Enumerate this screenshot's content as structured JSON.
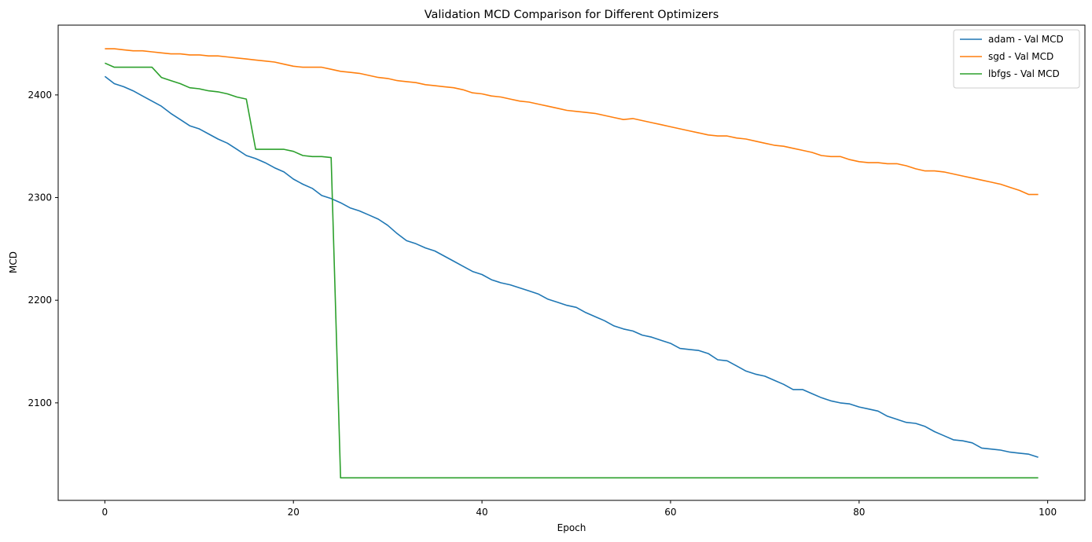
{
  "chart_data": {
    "type": "line",
    "title": "Validation MCD Comparison for Different Optimizers",
    "xlabel": "Epoch",
    "ylabel": "MCD",
    "xlim": [
      -4.95,
      103.95
    ],
    "ylim": [
      2005,
      2468
    ],
    "xticks": [
      0,
      20,
      40,
      60,
      80,
      100
    ],
    "yticks": [
      2100,
      2200,
      2300,
      2400
    ],
    "grid": false,
    "legend_position": "top-right",
    "series": [
      {
        "name": "adam - Val MCD",
        "color": "#1f77b4",
        "x_start": 0,
        "values": [
          2418,
          2411,
          2408,
          2404,
          2399,
          2394,
          2389,
          2382,
          2376,
          2370,
          2367,
          2362,
          2357,
          2353,
          2347,
          2341,
          2338,
          2334,
          2329,
          2325,
          2318,
          2313,
          2309,
          2302,
          2299,
          2295,
          2290,
          2287,
          2283,
          2279,
          2273,
          2265,
          2258,
          2255,
          2251,
          2248,
          2243,
          2238,
          2233,
          2228,
          2225,
          2220,
          2217,
          2215,
          2212,
          2209,
          2206,
          2201,
          2198,
          2195,
          2193,
          2188,
          2184,
          2180,
          2175,
          2172,
          2170,
          2166,
          2164,
          2161,
          2158,
          2153,
          2152,
          2151,
          2148,
          2142,
          2141,
          2136,
          2131,
          2128,
          2126,
          2122,
          2118,
          2113,
          2113,
          2109,
          2105,
          2102,
          2100,
          2099,
          2096,
          2094,
          2092,
          2087,
          2084,
          2081,
          2080,
          2077,
          2072,
          2068,
          2064,
          2063,
          2061,
          2056,
          2055,
          2054,
          2052,
          2051,
          2050,
          2047
        ]
      },
      {
        "name": "sgd - Val MCD",
        "color": "#ff7f0e",
        "x_start": 0,
        "values": [
          2445,
          2445,
          2444,
          2443,
          2443,
          2442,
          2441,
          2440,
          2440,
          2439,
          2439,
          2438,
          2438,
          2437,
          2436,
          2435,
          2434,
          2433,
          2432,
          2430,
          2428,
          2427,
          2427,
          2427,
          2425,
          2423,
          2422,
          2421,
          2419,
          2417,
          2416,
          2414,
          2413,
          2412,
          2410,
          2409,
          2408,
          2407,
          2405,
          2402,
          2401,
          2399,
          2398,
          2396,
          2394,
          2393,
          2391,
          2389,
          2387,
          2385,
          2384,
          2383,
          2382,
          2380,
          2378,
          2376,
          2377,
          2375,
          2373,
          2371,
          2369,
          2367,
          2365,
          2363,
          2361,
          2360,
          2360,
          2358,
          2357,
          2355,
          2353,
          2351,
          2350,
          2348,
          2346,
          2344,
          2341,
          2340,
          2340,
          2337,
          2335,
          2334,
          2334,
          2333,
          2333,
          2331,
          2328,
          2326,
          2326,
          2325,
          2323,
          2321,
          2319,
          2317,
          2315,
          2313,
          2310,
          2307,
          2303,
          2303
        ]
      },
      {
        "name": "lbfgs - Val MCD",
        "color": "#2ca02c",
        "x_start": 0,
        "values": [
          2431,
          2427,
          2427,
          2427,
          2427,
          2427,
          2417,
          2414,
          2411,
          2407,
          2406,
          2404,
          2403,
          2401,
          2398,
          2396,
          2347,
          2347,
          2347,
          2347,
          2345,
          2341,
          2340,
          2340,
          2339,
          2027,
          2027,
          2027,
          2027,
          2027,
          2027,
          2027,
          2027,
          2027,
          2027,
          2027,
          2027,
          2027,
          2027,
          2027,
          2027,
          2027,
          2027,
          2027,
          2027,
          2027,
          2027,
          2027,
          2027,
          2027,
          2027,
          2027,
          2027,
          2027,
          2027,
          2027,
          2027,
          2027,
          2027,
          2027,
          2027,
          2027,
          2027,
          2027,
          2027,
          2027,
          2027,
          2027,
          2027,
          2027,
          2027,
          2027,
          2027,
          2027,
          2027,
          2027,
          2027,
          2027,
          2027,
          2027,
          2027,
          2027,
          2027,
          2027,
          2027,
          2027,
          2027,
          2027,
          2027,
          2027,
          2027,
          2027,
          2027,
          2027,
          2027,
          2027,
          2027,
          2027,
          2027,
          2027
        ]
      }
    ]
  }
}
